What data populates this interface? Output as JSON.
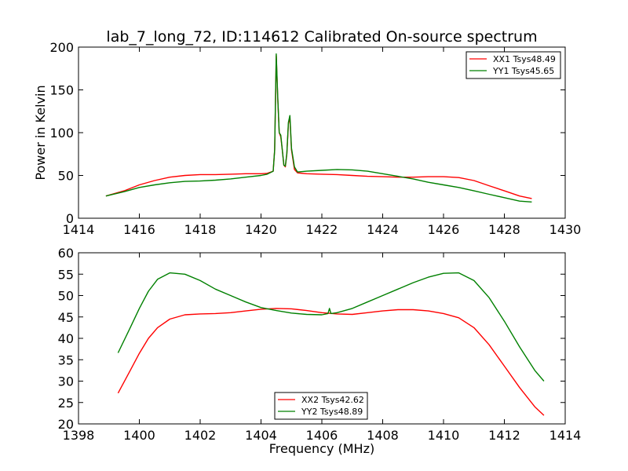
{
  "chart_data": [
    {
      "type": "line",
      "title": "lab_7_long_72, ID:114612 Calibrated On-source spectrum",
      "xlabel": "",
      "ylabel": "Power in Kelvin",
      "xlim": [
        1414,
        1430
      ],
      "ylim": [
        0,
        200
      ],
      "xticks": [
        1414,
        1416,
        1418,
        1420,
        1422,
        1424,
        1426,
        1428,
        1430
      ],
      "yticks": [
        0,
        50,
        100,
        150,
        200
      ],
      "grid": false,
      "legend_position": "top-right",
      "series": [
        {
          "name": "XX1 Tsys48.49",
          "color": "#ff0000",
          "x": [
            1414.9,
            1415.5,
            1416.0,
            1416.5,
            1417.0,
            1417.5,
            1418.0,
            1418.5,
            1419.0,
            1419.5,
            1420.0,
            1420.2,
            1420.4,
            1420.45,
            1420.5,
            1420.55,
            1420.6,
            1420.65,
            1420.7,
            1420.75,
            1420.8,
            1420.85,
            1420.9,
            1420.95,
            1421.0,
            1421.1,
            1421.2,
            1421.5,
            1422.0,
            1422.5,
            1423.0,
            1423.5,
            1424.0,
            1424.5,
            1425.0,
            1425.5,
            1426.0,
            1426.5,
            1427.0,
            1427.5,
            1428.0,
            1428.5,
            1428.9
          ],
          "y": [
            26,
            32,
            39,
            44,
            48,
            50,
            51,
            51,
            51.5,
            52,
            52,
            52.5,
            55,
            80,
            190,
            140,
            100,
            95,
            80,
            62,
            60,
            75,
            110,
            118,
            80,
            57,
            53,
            52,
            51.5,
            51,
            50,
            49,
            48.5,
            48,
            48,
            48.5,
            48.5,
            47.5,
            44,
            38,
            32,
            26,
            23
          ]
        },
        {
          "name": "YY1 Tsys45.65",
          "color": "#008000",
          "x": [
            1414.9,
            1415.5,
            1416.0,
            1416.5,
            1417.0,
            1417.5,
            1418.0,
            1418.5,
            1419.0,
            1419.5,
            1420.0,
            1420.2,
            1420.4,
            1420.45,
            1420.5,
            1420.55,
            1420.6,
            1420.65,
            1420.7,
            1420.75,
            1420.8,
            1420.85,
            1420.9,
            1420.95,
            1421.0,
            1421.1,
            1421.2,
            1421.5,
            1422.0,
            1422.5,
            1423.0,
            1423.5,
            1424.0,
            1424.5,
            1425.0,
            1425.5,
            1426.0,
            1426.5,
            1427.0,
            1427.5,
            1428.0,
            1428.5,
            1428.9
          ],
          "y": [
            26,
            31,
            36,
            39,
            41.5,
            43,
            43.5,
            44.5,
            46,
            48,
            50,
            51.5,
            55,
            80,
            192,
            142,
            100,
            97,
            80,
            62,
            61,
            76,
            112,
            120,
            82,
            60,
            54,
            55,
            56,
            57,
            56.5,
            55,
            52,
            49,
            46,
            42,
            39,
            36,
            32,
            28,
            24,
            20,
            19
          ]
        }
      ]
    },
    {
      "type": "line",
      "title": "",
      "xlabel": "Frequency (MHz)",
      "ylabel": "",
      "xlim": [
        1398,
        1414
      ],
      "ylim": [
        20,
        60
      ],
      "xticks": [
        1398,
        1400,
        1402,
        1404,
        1406,
        1408,
        1410,
        1412,
        1414
      ],
      "yticks": [
        20,
        25,
        30,
        35,
        40,
        45,
        50,
        55,
        60
      ],
      "grid": false,
      "legend_position": "bottom-center",
      "series": [
        {
          "name": "XX2 Tsys42.62",
          "color": "#ff0000",
          "x": [
            1399.3,
            1399.7,
            1400.0,
            1400.3,
            1400.6,
            1401.0,
            1401.5,
            1402.0,
            1402.5,
            1403.0,
            1403.5,
            1404.0,
            1404.5,
            1405.0,
            1405.5,
            1406.0,
            1406.5,
            1407.0,
            1407.5,
            1408.0,
            1408.5,
            1409.0,
            1409.5,
            1410.0,
            1410.5,
            1411.0,
            1411.5,
            1412.0,
            1412.5,
            1413.0,
            1413.3
          ],
          "y": [
            27.2,
            32.5,
            36.5,
            40,
            42.5,
            44.5,
            45.5,
            45.7,
            45.8,
            46,
            46.4,
            46.8,
            47,
            46.9,
            46.5,
            46,
            45.7,
            45.6,
            46,
            46.4,
            46.7,
            46.7,
            46.4,
            45.8,
            44.8,
            42.5,
            38.5,
            33.5,
            28.5,
            24,
            22
          ]
        },
        {
          "name": "YY2 Tsys48.89",
          "color": "#008000",
          "x": [
            1399.3,
            1399.7,
            1400.0,
            1400.3,
            1400.6,
            1401.0,
            1401.5,
            1402.0,
            1402.5,
            1403.0,
            1403.5,
            1404.0,
            1404.5,
            1405.0,
            1405.5,
            1406.0,
            1406.2,
            1406.25,
            1406.3,
            1406.5,
            1407.0,
            1407.5,
            1408.0,
            1408.5,
            1409.0,
            1409.5,
            1410.0,
            1410.5,
            1411.0,
            1411.5,
            1412.0,
            1412.5,
            1413.0,
            1413.3
          ],
          "y": [
            36.6,
            42.5,
            47,
            51,
            53.8,
            55.3,
            55,
            53.5,
            51.5,
            50,
            48.5,
            47.2,
            46.5,
            45.9,
            45.6,
            45.5,
            45.8,
            47,
            45.8,
            46,
            47,
            48.5,
            50,
            51.5,
            53,
            54.3,
            55.2,
            55.3,
            53.5,
            49.5,
            44,
            38,
            32.5,
            30
          ]
        }
      ]
    }
  ]
}
